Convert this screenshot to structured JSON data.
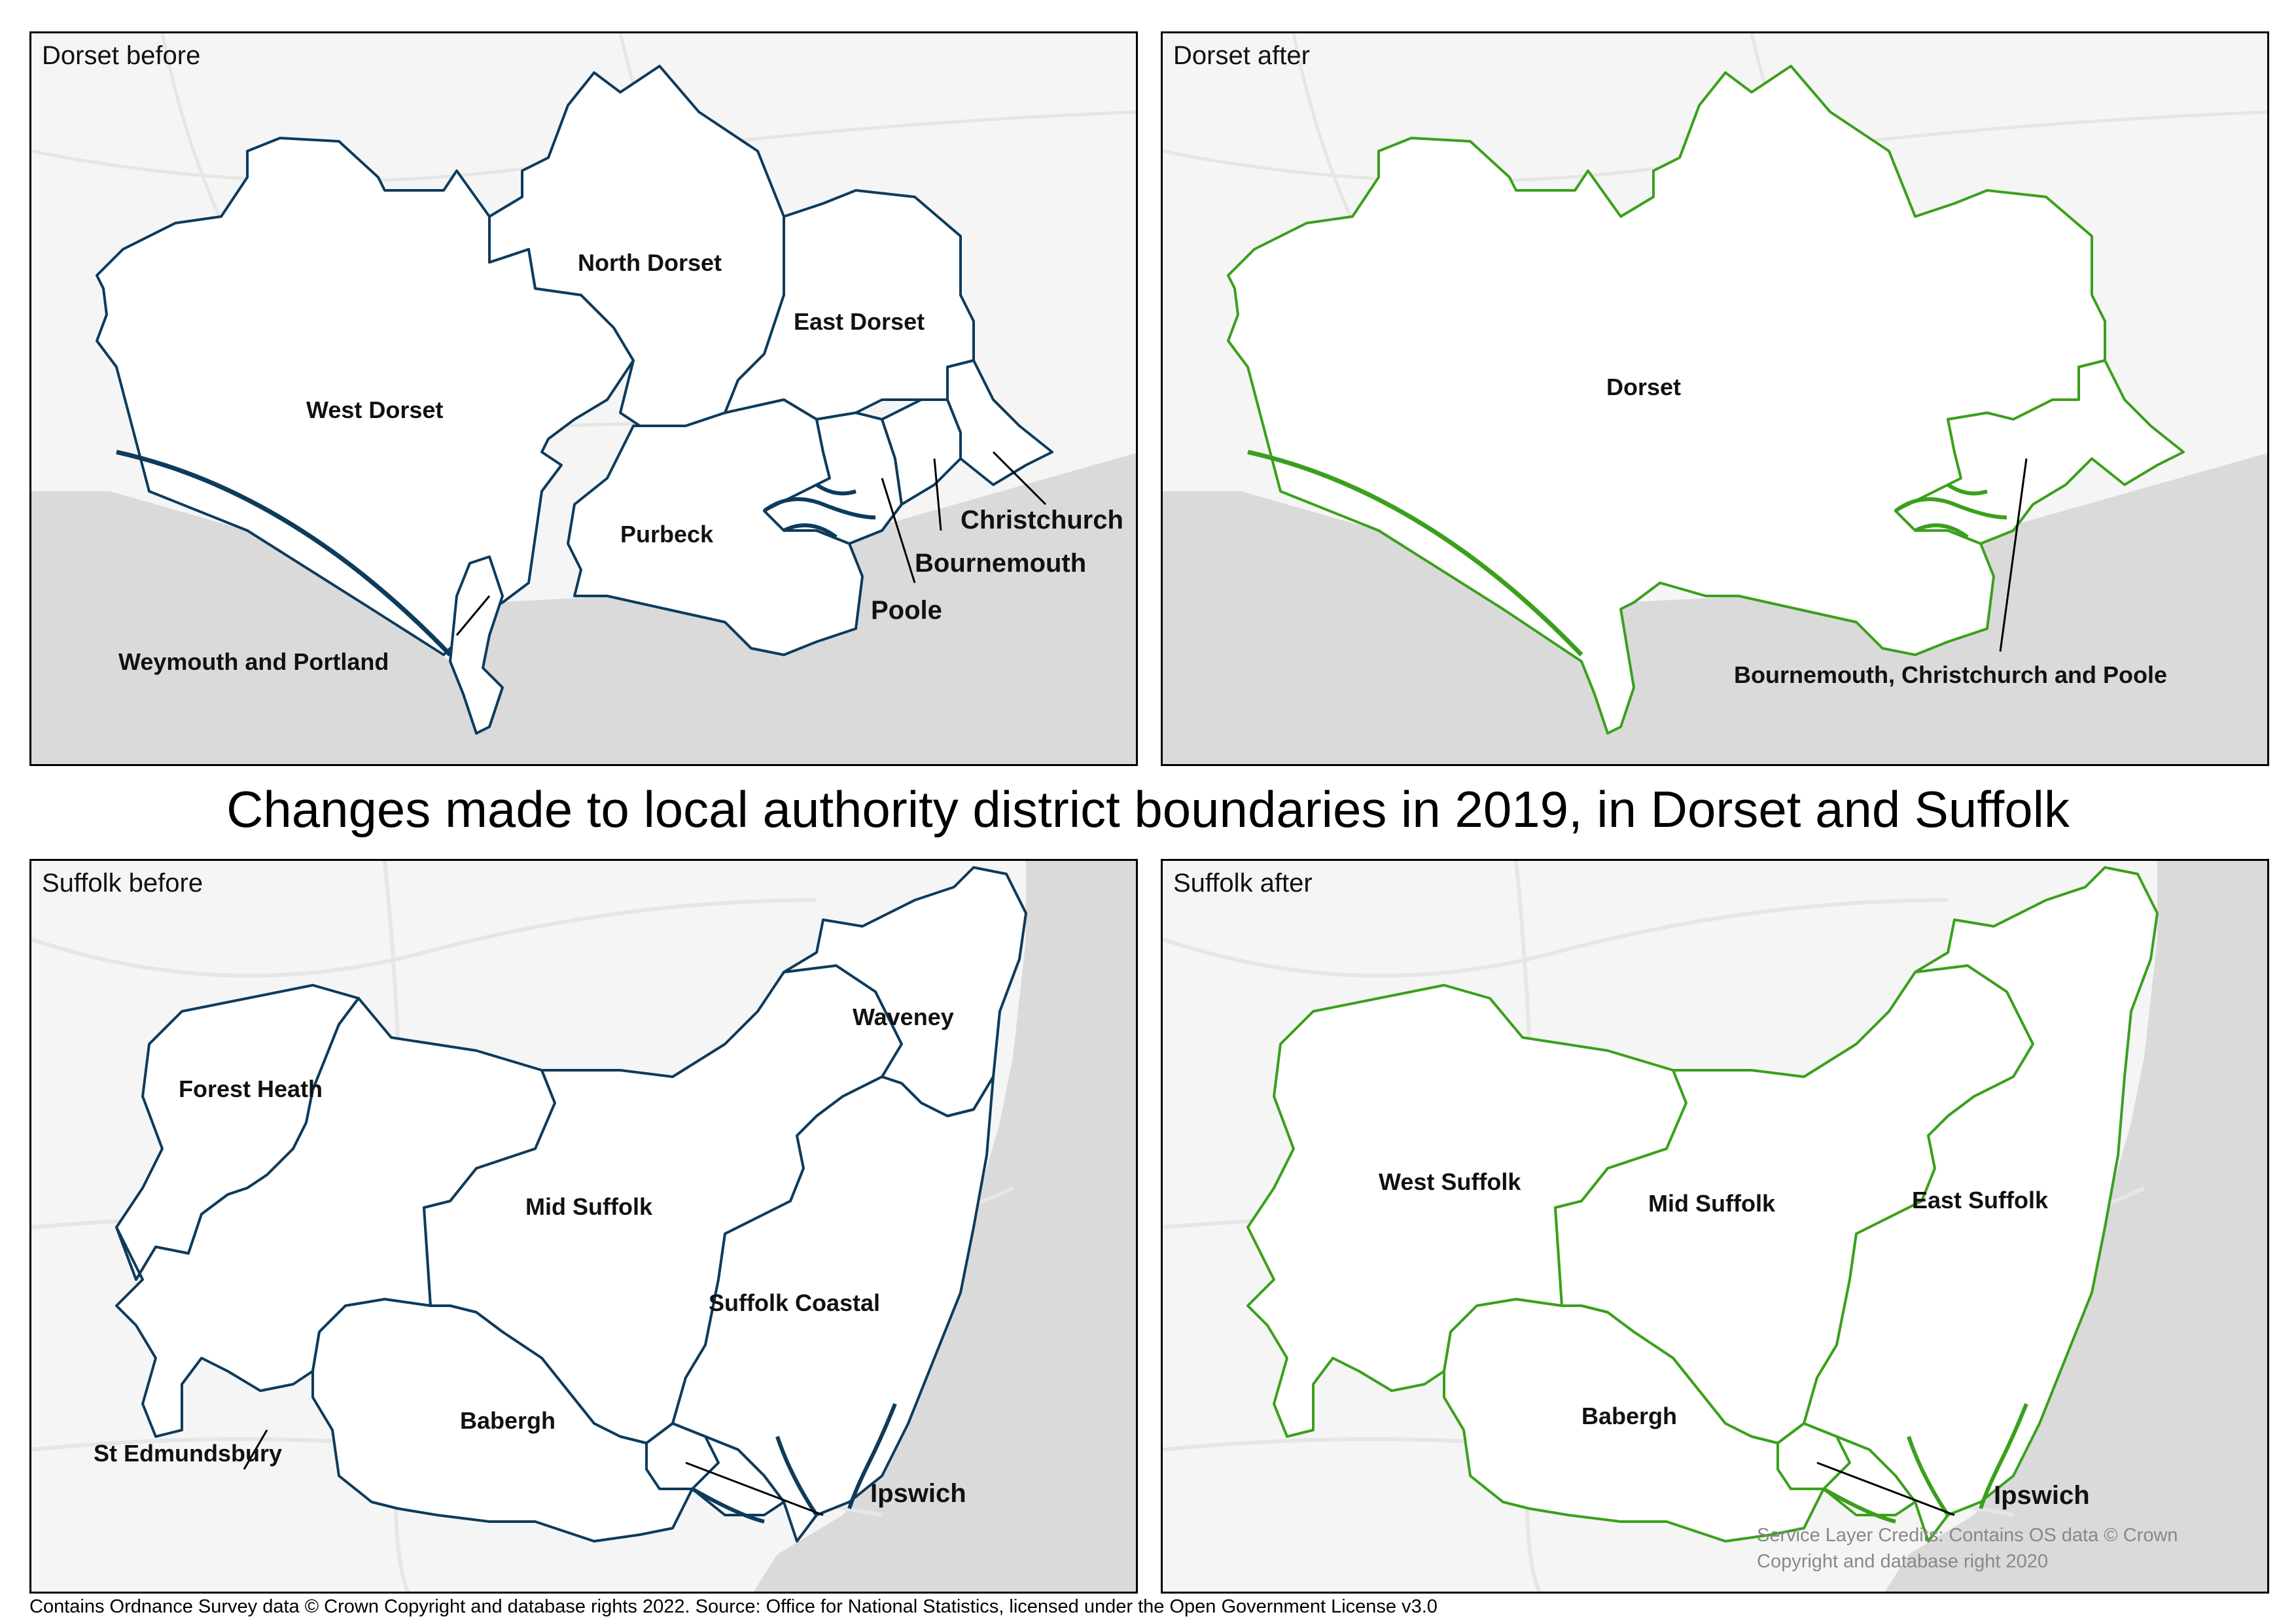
{
  "title": "Changes made to local authority district boundaries in 2019, in Dorset and Suffolk",
  "footer": "Contains Ordnance Survey data © Crown Copyright and database rights 2022. Source: Office for National Statistics, licensed under the Open Government License v3.0",
  "credits": {
    "line1": "Service Layer Credits: Contains OS data © Crown",
    "line2": "Copyright and database right 2020"
  },
  "colors": {
    "before": "#0d3b5c",
    "after": "#3aa01c",
    "sea": "#dadada",
    "land": "#f5f5f5"
  },
  "panels": {
    "dorset_before": {
      "title": "Dorset before",
      "labels": {
        "north_dorset": "North Dorset",
        "east_dorset": "East Dorset",
        "west_dorset": "West Dorset",
        "purbeck": "Purbeck",
        "christchurch": "Christchurch",
        "bournemouth": "Bournemouth",
        "poole": "Poole",
        "weymouth": "Weymouth and Portland"
      }
    },
    "dorset_after": {
      "title": "Dorset after",
      "labels": {
        "dorset": "Dorset",
        "bcp": "Bournemouth, Christchurch and Poole"
      }
    },
    "suffolk_before": {
      "title": "Suffolk before",
      "labels": {
        "waveney": "Waveney",
        "forest_heath": "Forest Heath",
        "mid_suffolk": "Mid Suffolk",
        "suffolk_coastal": "Suffolk Coastal",
        "babergh": "Babergh",
        "st_edmundsbury": "St Edmundsbury",
        "ipswich": "Ipswich"
      }
    },
    "suffolk_after": {
      "title": "Suffolk after",
      "labels": {
        "west_suffolk": "West Suffolk",
        "mid_suffolk": "Mid Suffolk",
        "east_suffolk": "East Suffolk",
        "babergh": "Babergh",
        "ipswich": "Ipswich"
      }
    }
  }
}
